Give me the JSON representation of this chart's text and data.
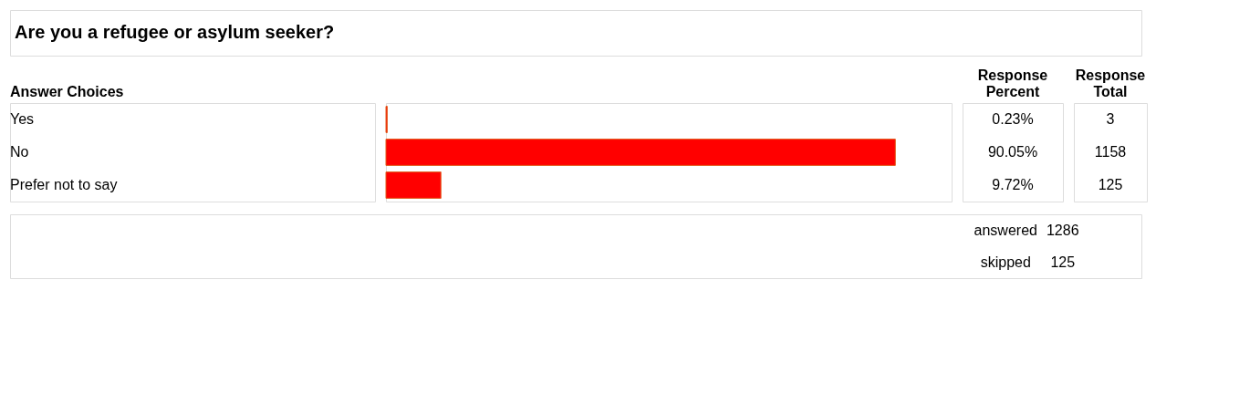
{
  "chart_data": {
    "type": "bar",
    "orientation": "horizontal",
    "title": "Are you a refugee or asylum seeker?",
    "categories": [
      "Yes",
      "No",
      "Prefer not to say"
    ],
    "values": [
      0.23,
      90.05,
      9.72
    ],
    "value_labels": [
      "0.23%",
      "90.05%",
      "9.72%"
    ],
    "colors": [
      "#ff0000",
      "#ff0000",
      "#ff0000"
    ],
    "xlim": [
      0,
      100
    ],
    "tick_labels": false,
    "annotations": [
      "Answer Choices",
      "Response Percent",
      "Response Total",
      "3",
      "1158",
      "125",
      "answered",
      "1286",
      "skipped",
      "125"
    ]
  }
}
